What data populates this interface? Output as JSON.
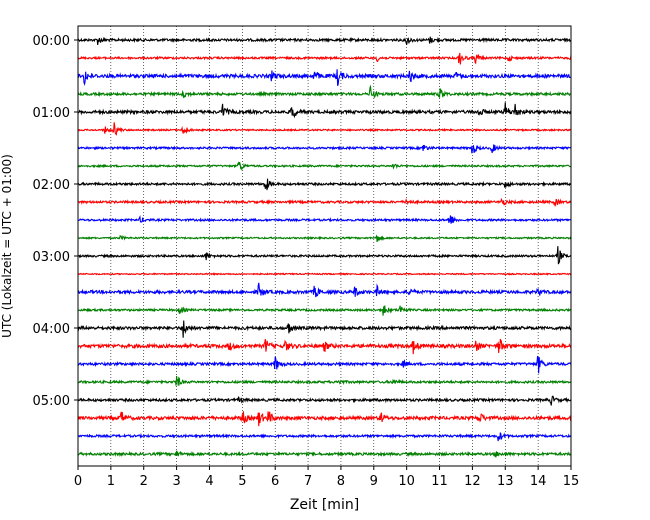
{
  "chart_data": {
    "type": "line",
    "xlabel": "Zeit  [min]",
    "ylabel": "UTC (Lokalzeit = UTC + 01:00)",
    "xlim": [
      0,
      15
    ],
    "xticks": [
      "0",
      "1",
      "2",
      "3",
      "4",
      "5",
      "6",
      "7",
      "8",
      "9",
      "10",
      "11",
      "12",
      "13",
      "14",
      "15"
    ],
    "yticks": [
      "00:00",
      "01:00",
      "02:00",
      "03:00",
      "04:00",
      "05:00"
    ],
    "grid": "vertical dotted lines at each minute",
    "line_interval_minutes": 15,
    "colors_cycle": [
      "#000000",
      "#ff0000",
      "#0000ff",
      "#008000"
    ],
    "traces": [
      {
        "start": "00:00",
        "color": "#000000",
        "noise": 1.0,
        "events": [
          [
            0.6,
            4
          ],
          [
            10.0,
            5
          ],
          [
            10.7,
            3
          ]
        ]
      },
      {
        "start": "00:15",
        "color": "#ff0000",
        "noise": 0.8,
        "events": [
          [
            9.1,
            3
          ],
          [
            11.6,
            8
          ],
          [
            12.1,
            5
          ],
          [
            13.1,
            3
          ],
          [
            15.0,
            5
          ]
        ]
      },
      {
        "start": "00:30",
        "color": "#0000ff",
        "noise": 1.4,
        "events": [
          [
            0.2,
            8
          ],
          [
            5.9,
            5
          ],
          [
            7.2,
            6
          ],
          [
            7.9,
            9
          ],
          [
            10.1,
            7
          ],
          [
            11.5,
            3
          ]
        ]
      },
      {
        "start": "00:45",
        "color": "#008000",
        "noise": 1.0,
        "events": [
          [
            3.2,
            4
          ],
          [
            8.9,
            9
          ],
          [
            11.0,
            7
          ]
        ]
      },
      {
        "start": "01:00",
        "color": "#000000",
        "noise": 1.2,
        "events": [
          [
            4.4,
            8
          ],
          [
            6.5,
            9
          ],
          [
            12.2,
            5
          ],
          [
            13.0,
            9
          ],
          [
            13.3,
            8
          ]
        ]
      },
      {
        "start": "01:15",
        "color": "#ff0000",
        "noise": 0.6,
        "events": [
          [
            0.8,
            4
          ],
          [
            1.1,
            8
          ],
          [
            3.2,
            7
          ]
        ]
      },
      {
        "start": "01:30",
        "color": "#0000ff",
        "noise": 0.8,
        "events": [
          [
            10.5,
            4
          ],
          [
            12.0,
            7
          ],
          [
            12.6,
            5
          ]
        ]
      },
      {
        "start": "01:45",
        "color": "#008000",
        "noise": 0.7,
        "events": [
          [
            4.9,
            7
          ],
          [
            9.6,
            3
          ]
        ]
      },
      {
        "start": "02:00",
        "color": "#000000",
        "noise": 0.9,
        "events": [
          [
            5.7,
            9
          ],
          [
            13.0,
            4
          ]
        ]
      },
      {
        "start": "02:15",
        "color": "#ff0000",
        "noise": 0.9,
        "events": [
          [
            10.0,
            3
          ],
          [
            12.9,
            4
          ],
          [
            14.5,
            4
          ]
        ]
      },
      {
        "start": "02:30",
        "color": "#0000ff",
        "noise": 0.8,
        "events": [
          [
            1.9,
            3
          ],
          [
            11.3,
            8
          ]
        ]
      },
      {
        "start": "02:45",
        "color": "#008000",
        "noise": 0.6,
        "events": [
          [
            1.3,
            2
          ],
          [
            9.1,
            4
          ]
        ]
      },
      {
        "start": "03:00",
        "color": "#000000",
        "noise": 0.8,
        "events": [
          [
            3.9,
            4
          ],
          [
            14.6,
            10
          ]
        ]
      },
      {
        "start": "03:15",
        "color": "#ff0000",
        "noise": 0.5,
        "events": []
      },
      {
        "start": "03:30",
        "color": "#0000ff",
        "noise": 1.2,
        "events": [
          [
            5.5,
            8
          ],
          [
            7.2,
            7
          ],
          [
            8.4,
            6
          ],
          [
            9.1,
            5
          ],
          [
            10.1,
            5
          ],
          [
            14.0,
            4
          ]
        ]
      },
      {
        "start": "03:45",
        "color": "#008000",
        "noise": 0.8,
        "events": [
          [
            3.1,
            4
          ],
          [
            9.3,
            7
          ],
          [
            9.8,
            5
          ]
        ]
      },
      {
        "start": "04:00",
        "color": "#000000",
        "noise": 1.2,
        "events": [
          [
            3.2,
            10
          ],
          [
            6.4,
            6
          ]
        ]
      },
      {
        "start": "04:15",
        "color": "#ff0000",
        "noise": 1.4,
        "events": [
          [
            4.6,
            5
          ],
          [
            5.7,
            7
          ],
          [
            6.3,
            6
          ],
          [
            7.5,
            5
          ],
          [
            10.2,
            7
          ],
          [
            12.1,
            6
          ],
          [
            12.8,
            10
          ]
        ]
      },
      {
        "start": "04:30",
        "color": "#0000ff",
        "noise": 1.0,
        "events": [
          [
            6.0,
            8
          ],
          [
            9.9,
            3
          ],
          [
            14.0,
            10
          ]
        ]
      },
      {
        "start": "04:45",
        "color": "#008000",
        "noise": 0.9,
        "events": [
          [
            3.0,
            7
          ],
          [
            7.9,
            3
          ],
          [
            9.6,
            3
          ]
        ]
      },
      {
        "start": "05:00",
        "color": "#000000",
        "noise": 1.0,
        "events": [
          [
            4.9,
            3
          ],
          [
            14.4,
            5
          ]
        ]
      },
      {
        "start": "05:15",
        "color": "#ff0000",
        "noise": 1.3,
        "events": [
          [
            1.3,
            8
          ],
          [
            5.0,
            8
          ],
          [
            5.5,
            8
          ],
          [
            5.8,
            7
          ],
          [
            9.2,
            6
          ],
          [
            12.2,
            7
          ]
        ]
      },
      {
        "start": "05:30",
        "color": "#0000ff",
        "noise": 0.9,
        "events": [
          [
            12.8,
            6
          ]
        ]
      },
      {
        "start": "05:45",
        "color": "#008000",
        "noise": 1.0,
        "events": [
          [
            3.0,
            3
          ],
          [
            12.7,
            3
          ]
        ]
      }
    ]
  }
}
